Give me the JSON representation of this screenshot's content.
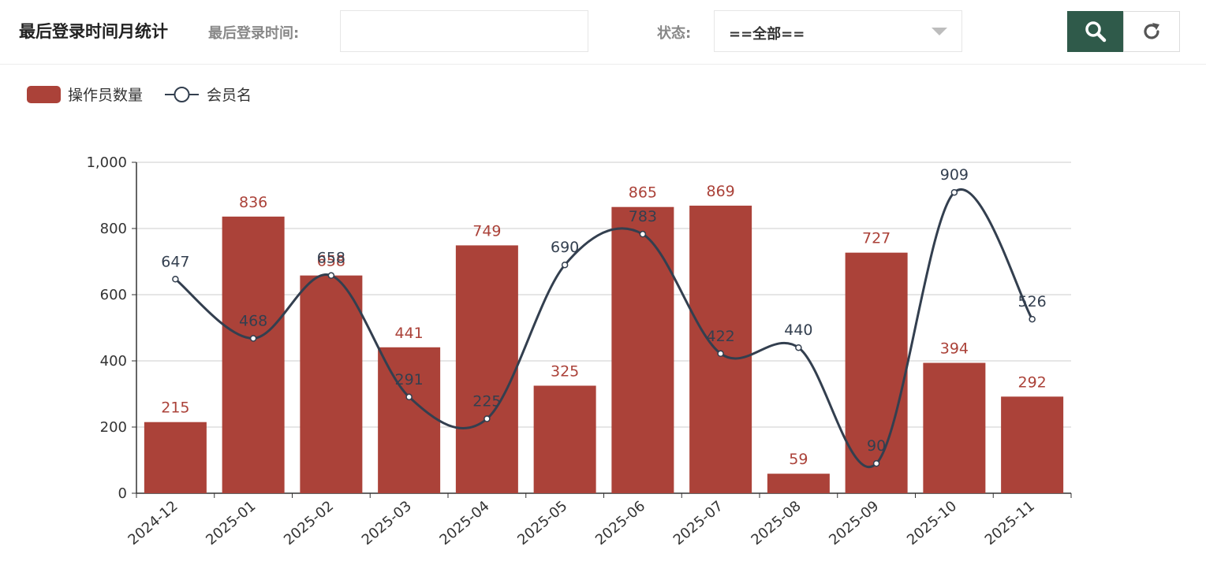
{
  "header": {
    "title": "最后登录时间月统计",
    "date_label": "最后登录时间:",
    "date_value": "",
    "status_label": "状态:",
    "status_value": "==全部=="
  },
  "buttons": {
    "search_icon": "search-icon",
    "refresh_icon": "refresh-icon"
  },
  "colors": {
    "bar": "#ab4239",
    "line": "#333f4f",
    "search_button": "#2f5a4a"
  },
  "chart_data": {
    "type": "bar",
    "categories": [
      "2024-12",
      "2025-01",
      "2025-02",
      "2025-03",
      "2025-04",
      "2025-05",
      "2025-06",
      "2025-07",
      "2025-08",
      "2025-09",
      "2025-10",
      "2025-11"
    ],
    "series": [
      {
        "name": "操作员数量",
        "type": "bar",
        "values": [
          215,
          836,
          658,
          441,
          749,
          325,
          865,
          869,
          59,
          727,
          394,
          292
        ]
      },
      {
        "name": "会员名",
        "type": "line",
        "smooth": true,
        "values": [
          647,
          468,
          658,
          291,
          225,
          690,
          783,
          422,
          440,
          90,
          909,
          526
        ]
      }
    ],
    "ylim": [
      0,
      1000
    ],
    "yticks": [
      "0",
      "200",
      "400",
      "600",
      "800",
      "1,000"
    ],
    "legend_position": "top-left",
    "grid": true
  }
}
